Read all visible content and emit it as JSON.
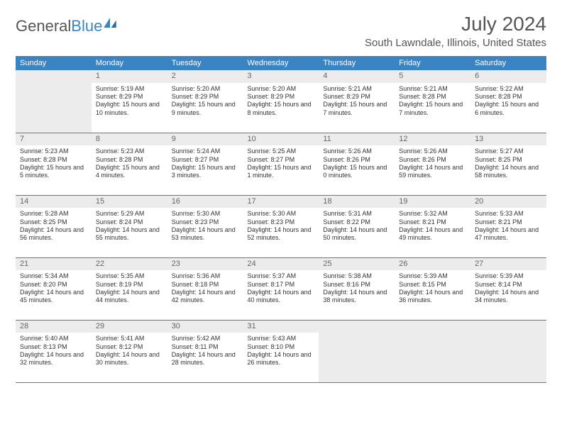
{
  "logo": {
    "text1": "General",
    "text2": "Blue"
  },
  "title": "July 2024",
  "subtitle": "South Lawndale, Illinois, United States",
  "colors": {
    "header_bg": "#3b84c4",
    "header_fg": "#ffffff",
    "daynum_bg": "#ececec",
    "divider": "#3b84c4",
    "page_bg": "#ffffff",
    "text": "#333333",
    "title_color": "#555555"
  },
  "weekdays": [
    "Sunday",
    "Monday",
    "Tuesday",
    "Wednesday",
    "Thursday",
    "Friday",
    "Saturday"
  ],
  "weeks": [
    [
      {
        "num": "",
        "sunrise": "",
        "sunset": "",
        "daylight": ""
      },
      {
        "num": "1",
        "sunrise": "Sunrise: 5:19 AM",
        "sunset": "Sunset: 8:29 PM",
        "daylight": "Daylight: 15 hours and 10 minutes."
      },
      {
        "num": "2",
        "sunrise": "Sunrise: 5:20 AM",
        "sunset": "Sunset: 8:29 PM",
        "daylight": "Daylight: 15 hours and 9 minutes."
      },
      {
        "num": "3",
        "sunrise": "Sunrise: 5:20 AM",
        "sunset": "Sunset: 8:29 PM",
        "daylight": "Daylight: 15 hours and 8 minutes."
      },
      {
        "num": "4",
        "sunrise": "Sunrise: 5:21 AM",
        "sunset": "Sunset: 8:29 PM",
        "daylight": "Daylight: 15 hours and 7 minutes."
      },
      {
        "num": "5",
        "sunrise": "Sunrise: 5:21 AM",
        "sunset": "Sunset: 8:28 PM",
        "daylight": "Daylight: 15 hours and 7 minutes."
      },
      {
        "num": "6",
        "sunrise": "Sunrise: 5:22 AM",
        "sunset": "Sunset: 8:28 PM",
        "daylight": "Daylight: 15 hours and 6 minutes."
      }
    ],
    [
      {
        "num": "7",
        "sunrise": "Sunrise: 5:23 AM",
        "sunset": "Sunset: 8:28 PM",
        "daylight": "Daylight: 15 hours and 5 minutes."
      },
      {
        "num": "8",
        "sunrise": "Sunrise: 5:23 AM",
        "sunset": "Sunset: 8:28 PM",
        "daylight": "Daylight: 15 hours and 4 minutes."
      },
      {
        "num": "9",
        "sunrise": "Sunrise: 5:24 AM",
        "sunset": "Sunset: 8:27 PM",
        "daylight": "Daylight: 15 hours and 3 minutes."
      },
      {
        "num": "10",
        "sunrise": "Sunrise: 5:25 AM",
        "sunset": "Sunset: 8:27 PM",
        "daylight": "Daylight: 15 hours and 1 minute."
      },
      {
        "num": "11",
        "sunrise": "Sunrise: 5:26 AM",
        "sunset": "Sunset: 8:26 PM",
        "daylight": "Daylight: 15 hours and 0 minutes."
      },
      {
        "num": "12",
        "sunrise": "Sunrise: 5:26 AM",
        "sunset": "Sunset: 8:26 PM",
        "daylight": "Daylight: 14 hours and 59 minutes."
      },
      {
        "num": "13",
        "sunrise": "Sunrise: 5:27 AM",
        "sunset": "Sunset: 8:25 PM",
        "daylight": "Daylight: 14 hours and 58 minutes."
      }
    ],
    [
      {
        "num": "14",
        "sunrise": "Sunrise: 5:28 AM",
        "sunset": "Sunset: 8:25 PM",
        "daylight": "Daylight: 14 hours and 56 minutes."
      },
      {
        "num": "15",
        "sunrise": "Sunrise: 5:29 AM",
        "sunset": "Sunset: 8:24 PM",
        "daylight": "Daylight: 14 hours and 55 minutes."
      },
      {
        "num": "16",
        "sunrise": "Sunrise: 5:30 AM",
        "sunset": "Sunset: 8:23 PM",
        "daylight": "Daylight: 14 hours and 53 minutes."
      },
      {
        "num": "17",
        "sunrise": "Sunrise: 5:30 AM",
        "sunset": "Sunset: 8:23 PM",
        "daylight": "Daylight: 14 hours and 52 minutes."
      },
      {
        "num": "18",
        "sunrise": "Sunrise: 5:31 AM",
        "sunset": "Sunset: 8:22 PM",
        "daylight": "Daylight: 14 hours and 50 minutes."
      },
      {
        "num": "19",
        "sunrise": "Sunrise: 5:32 AM",
        "sunset": "Sunset: 8:21 PM",
        "daylight": "Daylight: 14 hours and 49 minutes."
      },
      {
        "num": "20",
        "sunrise": "Sunrise: 5:33 AM",
        "sunset": "Sunset: 8:21 PM",
        "daylight": "Daylight: 14 hours and 47 minutes."
      }
    ],
    [
      {
        "num": "21",
        "sunrise": "Sunrise: 5:34 AM",
        "sunset": "Sunset: 8:20 PM",
        "daylight": "Daylight: 14 hours and 45 minutes."
      },
      {
        "num": "22",
        "sunrise": "Sunrise: 5:35 AM",
        "sunset": "Sunset: 8:19 PM",
        "daylight": "Daylight: 14 hours and 44 minutes."
      },
      {
        "num": "23",
        "sunrise": "Sunrise: 5:36 AM",
        "sunset": "Sunset: 8:18 PM",
        "daylight": "Daylight: 14 hours and 42 minutes."
      },
      {
        "num": "24",
        "sunrise": "Sunrise: 5:37 AM",
        "sunset": "Sunset: 8:17 PM",
        "daylight": "Daylight: 14 hours and 40 minutes."
      },
      {
        "num": "25",
        "sunrise": "Sunrise: 5:38 AM",
        "sunset": "Sunset: 8:16 PM",
        "daylight": "Daylight: 14 hours and 38 minutes."
      },
      {
        "num": "26",
        "sunrise": "Sunrise: 5:39 AM",
        "sunset": "Sunset: 8:15 PM",
        "daylight": "Daylight: 14 hours and 36 minutes."
      },
      {
        "num": "27",
        "sunrise": "Sunrise: 5:39 AM",
        "sunset": "Sunset: 8:14 PM",
        "daylight": "Daylight: 14 hours and 34 minutes."
      }
    ],
    [
      {
        "num": "28",
        "sunrise": "Sunrise: 5:40 AM",
        "sunset": "Sunset: 8:13 PM",
        "daylight": "Daylight: 14 hours and 32 minutes."
      },
      {
        "num": "29",
        "sunrise": "Sunrise: 5:41 AM",
        "sunset": "Sunset: 8:12 PM",
        "daylight": "Daylight: 14 hours and 30 minutes."
      },
      {
        "num": "30",
        "sunrise": "Sunrise: 5:42 AM",
        "sunset": "Sunset: 8:11 PM",
        "daylight": "Daylight: 14 hours and 28 minutes."
      },
      {
        "num": "31",
        "sunrise": "Sunrise: 5:43 AM",
        "sunset": "Sunset: 8:10 PM",
        "daylight": "Daylight: 14 hours and 26 minutes."
      },
      {
        "num": "",
        "sunrise": "",
        "sunset": "",
        "daylight": ""
      },
      {
        "num": "",
        "sunrise": "",
        "sunset": "",
        "daylight": ""
      },
      {
        "num": "",
        "sunrise": "",
        "sunset": "",
        "daylight": ""
      }
    ]
  ]
}
